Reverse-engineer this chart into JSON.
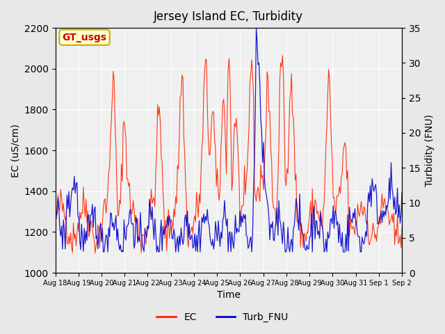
{
  "title": "Jersey Island EC, Turbidity",
  "xlabel": "Time",
  "ylabel_left": "EC (uS/cm)",
  "ylabel_right": "Turbidity (FNU)",
  "annotation_text": "GT_usgs",
  "annotation_bg": "#ffffcc",
  "annotation_border": "#ccaa00",
  "annotation_text_color": "#cc0000",
  "ec_color": "#ff2200",
  "turb_color": "#0000cc",
  "ylim_left": [
    1000,
    2200
  ],
  "ylim_right": [
    0,
    35
  ],
  "bg_color": "#e8e8e8",
  "plot_bg": "#f0f0f0",
  "grid_color": "#ffffff",
  "x_tick_labels": [
    "Aug 18",
    "Aug 19",
    "Aug 20",
    "Aug 21",
    "Aug 22",
    "Aug 23",
    "Aug 24",
    "Aug 25",
    "Aug 26",
    "Aug 27",
    "Aug 28",
    "Aug 29",
    "Aug 30",
    "Aug 31",
    "Sep 1",
    "Sep 2"
  ],
  "legend_labels": [
    "EC",
    "Turb_FNU"
  ]
}
